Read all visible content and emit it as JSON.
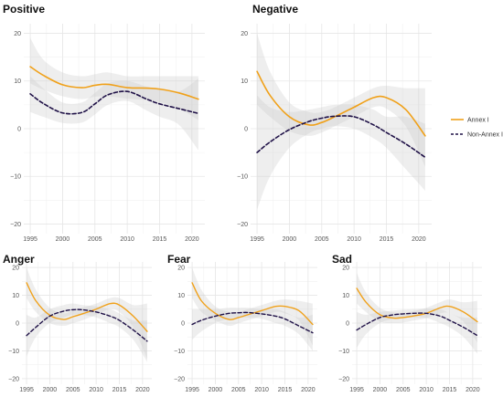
{
  "colors": {
    "annex": "#f0a11a",
    "nonannex": "#1f1147",
    "band": "#c9c9c9",
    "grid": "#e6e6e6"
  },
  "legend": {
    "placement": "right",
    "items": [
      {
        "label": "Annex I",
        "style": "solid",
        "color": "#f0a11a"
      },
      {
        "label": "Non-Annex I",
        "style": "dashed",
        "color": "#1f1147"
      }
    ]
  },
  "chart_data": [
    {
      "type": "line",
      "title": "Positive",
      "xlim": [
        1994,
        2022
      ],
      "ylim": [
        -22,
        22
      ],
      "xticks": [
        1995,
        2000,
        2005,
        2010,
        2015,
        2020
      ],
      "yticks": [
        20,
        10,
        0,
        -10,
        -20
      ],
      "series": [
        {
          "name": "Annex I",
          "x": [
            1995,
            1997,
            2000,
            2003,
            2005,
            2007,
            2010,
            2013,
            2015,
            2018,
            2021
          ],
          "y": [
            13,
            11.2,
            9.2,
            8.6,
            9.1,
            9.3,
            8.6,
            8.5,
            8.3,
            7.5,
            6.2
          ],
          "ci_lower": [
            9.5,
            8.2,
            6.8,
            6.2,
            6.7,
            6.8,
            6.3,
            6.0,
            5.6,
            4.2,
            1.8
          ],
          "ci_upper": [
            19,
            14.5,
            11.8,
            11.0,
            11.4,
            11.8,
            11.0,
            11.0,
            11.0,
            11.0,
            11.0
          ]
        },
        {
          "name": "Non-Annex I",
          "x": [
            1995,
            1997,
            2000,
            2003,
            2005,
            2007,
            2010,
            2013,
            2015,
            2018,
            2021
          ],
          "y": [
            7.3,
            5.3,
            3.3,
            3.4,
            5.2,
            7.1,
            7.8,
            6.2,
            5.2,
            4.2,
            3.2
          ],
          "ci_lower": [
            3.5,
            2.5,
            1.2,
            1.3,
            3.0,
            5.0,
            5.8,
            3.8,
            2.5,
            0.8,
            -4.5
          ],
          "ci_upper": [
            11.0,
            8.5,
            5.5,
            5.5,
            7.5,
            9.5,
            10.0,
            8.8,
            8.2,
            7.8,
            10.5
          ]
        }
      ]
    },
    {
      "type": "line",
      "title": "Negative",
      "xlim": [
        1994,
        2022
      ],
      "ylim": [
        -22,
        22
      ],
      "xticks": [
        1995,
        2000,
        2005,
        2010,
        2015,
        2020
      ],
      "yticks": [
        20,
        10,
        0,
        -10,
        -20
      ],
      "series": [
        {
          "name": "Annex I",
          "x": [
            1995,
            1997,
            2000,
            2003,
            2005,
            2007,
            2010,
            2013,
            2015,
            2018,
            2021
          ],
          "y": [
            12,
            7,
            2.5,
            0.8,
            1.3,
            2.5,
            4.5,
            6.5,
            6.5,
            4,
            -1.5
          ],
          "ci_lower": [
            5,
            2.5,
            -0.5,
            -1.5,
            -0.8,
            0.5,
            2.5,
            4.5,
            4.2,
            0.5,
            -8
          ],
          "ci_upper": [
            20,
            12,
            5.5,
            3.5,
            3.5,
            4.5,
            6.5,
            8.5,
            9,
            8.5,
            8.5
          ]
        },
        {
          "name": "Non-Annex I",
          "x": [
            1995,
            1997,
            2000,
            2003,
            2005,
            2007,
            2010,
            2013,
            2015,
            2018,
            2021
          ],
          "y": [
            -5,
            -2.8,
            -0.2,
            1.5,
            2.2,
            2.6,
            2.5,
            0.8,
            -0.8,
            -3.2,
            -6
          ],
          "ci_lower": [
            -17,
            -10,
            -4,
            -1,
            0,
            0.5,
            0,
            -2,
            -4,
            -8.5,
            -13
          ],
          "ci_upper": [
            7,
            4.5,
            3.5,
            4,
            4.5,
            5,
            5,
            4,
            2.5,
            2.5,
            1
          ]
        }
      ]
    },
    {
      "type": "line",
      "title": "Anger",
      "xlim": [
        1994,
        2022
      ],
      "ylim": [
        -22,
        22
      ],
      "xticks": [
        1995,
        2000,
        2005,
        2010,
        2015,
        2020
      ],
      "yticks": [
        20,
        10,
        0,
        -10,
        -20
      ],
      "series": [
        {
          "name": "Annex I",
          "x": [
            1995,
            1997,
            2000,
            2003,
            2005,
            2007,
            2010,
            2013,
            2015,
            2018,
            2021
          ],
          "y": [
            14.5,
            8,
            2.8,
            1.3,
            2.3,
            3.3,
            5,
            7,
            6.5,
            2.5,
            -3
          ],
          "ci_lower": [
            9,
            4,
            0,
            -1,
            0,
            1,
            3,
            5,
            4,
            -1.5,
            -13
          ],
          "ci_upper": [
            20,
            12,
            5.5,
            3.5,
            4.5,
            5.5,
            7,
            9,
            9,
            6.5,
            7
          ]
        },
        {
          "name": "Non-Annex I",
          "x": [
            1995,
            1997,
            2000,
            2003,
            2005,
            2007,
            2010,
            2013,
            2015,
            2018,
            2021
          ],
          "y": [
            -4.5,
            -1.5,
            2.5,
            4.3,
            4.8,
            4.8,
            4,
            2.5,
            1,
            -2.5,
            -6.5
          ],
          "ci_lower": [
            -12,
            -5,
            0,
            2,
            3,
            3,
            2,
            0,
            -1.5,
            -6,
            -14
          ],
          "ci_upper": [
            3,
            2,
            5,
            6.5,
            7,
            6.5,
            6,
            5,
            3.5,
            1,
            1
          ]
        }
      ]
    },
    {
      "type": "line",
      "title": "Fear",
      "xlim": [
        1994,
        2022
      ],
      "ylim": [
        -22,
        22
      ],
      "xticks": [
        1995,
        2000,
        2005,
        2010,
        2015,
        2020
      ],
      "yticks": [
        20,
        10,
        0,
        -10,
        -20
      ],
      "series": [
        {
          "name": "Annex I",
          "x": [
            1995,
            1997,
            2000,
            2003,
            2005,
            2007,
            2010,
            2013,
            2015,
            2018,
            2021
          ],
          "y": [
            14.5,
            8,
            3.5,
            1.3,
            2,
            3,
            4.5,
            6,
            6,
            4.5,
            -0.5
          ],
          "ci_lower": [
            9,
            4,
            1,
            -1,
            0,
            1,
            2.5,
            4,
            3.5,
            1,
            -8
          ],
          "ci_upper": [
            20,
            12,
            6,
            4,
            4,
            5,
            6.5,
            8,
            8.5,
            8,
            7
          ]
        },
        {
          "name": "Non-Annex I",
          "x": [
            1995,
            1997,
            2000,
            2003,
            2005,
            2007,
            2010,
            2013,
            2015,
            2018,
            2021
          ],
          "y": [
            -0.5,
            1,
            2.5,
            3.5,
            3.7,
            3.8,
            3.3,
            2.5,
            1.5,
            -1,
            -3.5
          ],
          "ci_lower": [
            -6,
            -3,
            0,
            1.5,
            2,
            2,
            1.5,
            0,
            -1,
            -4,
            -10
          ],
          "ci_upper": [
            5,
            5,
            5,
            5.5,
            5.5,
            5.5,
            5,
            5,
            4,
            2,
            3
          ]
        }
      ]
    },
    {
      "type": "line",
      "title": "Sad",
      "xlim": [
        1994,
        2022
      ],
      "ylim": [
        -22,
        22
      ],
      "xticks": [
        1995,
        2000,
        2005,
        2010,
        2015,
        2020
      ],
      "yticks": [
        20,
        10,
        0,
        -10,
        -20
      ],
      "series": [
        {
          "name": "Annex I",
          "x": [
            1995,
            1997,
            2000,
            2003,
            2005,
            2007,
            2010,
            2013,
            2015,
            2018,
            2021
          ],
          "y": [
            12.5,
            7.5,
            3,
            1.8,
            2,
            2.5,
            3.5,
            5.5,
            6,
            4,
            0.5
          ],
          "ci_lower": [
            7,
            4,
            0.5,
            0,
            0.2,
            0.8,
            1.8,
            3.5,
            3.5,
            0.5,
            -7
          ],
          "ci_upper": [
            18,
            11,
            5.5,
            3.8,
            3.8,
            4.2,
            5.5,
            7.5,
            8.5,
            7.5,
            8
          ]
        },
        {
          "name": "Non-Annex I",
          "x": [
            1995,
            1997,
            2000,
            2003,
            2005,
            2007,
            2010,
            2013,
            2015,
            2018,
            2021
          ],
          "y": [
            -2.5,
            -0.5,
            2,
            3,
            3.3,
            3.5,
            3.5,
            2.5,
            1,
            -1.5,
            -4.5
          ],
          "ci_lower": [
            -9,
            -4,
            0,
            1.5,
            1.8,
            2,
            1.8,
            0,
            -1.5,
            -5,
            -11
          ],
          "ci_upper": [
            4,
            3,
            4,
            4.5,
            4.8,
            5,
            5.2,
            5,
            3.5,
            2,
            2
          ]
        }
      ]
    }
  ]
}
